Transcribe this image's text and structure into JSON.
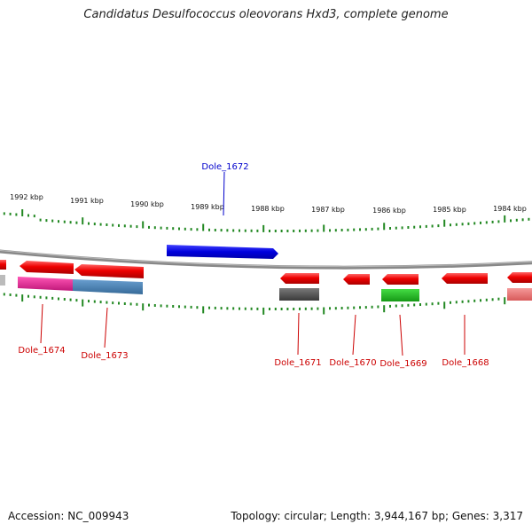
{
  "title": "Candidatus Desulfococcus oleovorans Hxd3, complete genome",
  "footer": {
    "accession": "Accession: NC_009943",
    "summary": "Topology: circular; Length: 3,944,167 bp; Genes: 3,317"
  },
  "scale_labels": [
    "1992 kbp",
    "1991 kbp",
    "1990 kbp",
    "1989 kbp",
    "1988 kbp",
    "1987 kbp",
    "1986 kbp",
    "1985 kbp",
    "1984 kbp"
  ],
  "gene_labels": [
    {
      "id": "Dole_1672",
      "strand": "forward",
      "color": "#0000cc"
    },
    {
      "id": "Dole_1674",
      "strand": "reverse",
      "color": "#cc0000"
    },
    {
      "id": "Dole_1673",
      "strand": "reverse",
      "color": "#cc0000"
    },
    {
      "id": "Dole_1671",
      "strand": "reverse",
      "color": "#cc0000"
    },
    {
      "id": "Dole_1670",
      "strand": "reverse",
      "color": "#cc0000"
    },
    {
      "id": "Dole_1669",
      "strand": "reverse",
      "color": "#cc0000"
    },
    {
      "id": "Dole_1668",
      "strand": "reverse",
      "color": "#cc0000"
    }
  ],
  "colors": {
    "forward_gene": "#0000dd",
    "reverse_gene": "#ee0000",
    "backbone": "#888888",
    "ticks": "#228822",
    "cog_magenta": "#e0208f",
    "cog_steelblue": "#4682b4",
    "cog_gray": "#555555",
    "cog_green": "#22bb22",
    "cog_pink": "#ee7777"
  }
}
